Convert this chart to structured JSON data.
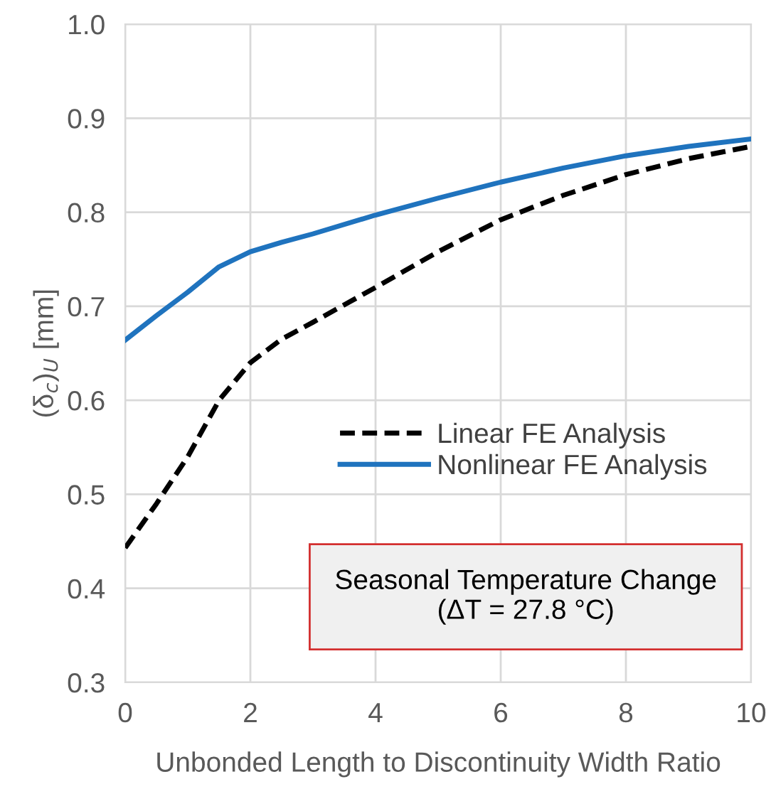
{
  "chart_data": {
    "type": "line",
    "xlabel": "Unbonded Length to Discontinuity Width Ratio",
    "ylabel": "(δ$_{c}$)$_{U}$ [mm]",
    "x": [
      0,
      0.5,
      1,
      1.5,
      2,
      2.5,
      3,
      4,
      5,
      6,
      7,
      8,
      9,
      10
    ],
    "series": [
      {
        "name": "Linear FE Analysis",
        "color": "#000000",
        "line_style": "dashed",
        "values": [
          0.443,
          0.49,
          0.54,
          0.6,
          0.64,
          0.665,
          0.683,
          0.72,
          0.758,
          0.792,
          0.818,
          0.84,
          0.857,
          0.87
        ]
      },
      {
        "name": "Nonlinear FE Analysis",
        "color": "#1f73be",
        "line_style": "solid",
        "values": [
          0.664,
          0.69,
          0.715,
          0.742,
          0.758,
          0.768,
          0.777,
          0.797,
          0.815,
          0.832,
          0.847,
          0.86,
          0.87,
          0.878
        ]
      }
    ],
    "xlim": [
      0,
      10
    ],
    "xticks": [
      0,
      2,
      4,
      6,
      8,
      10
    ],
    "ylim": [
      0.3,
      1.0
    ],
    "yticks": [
      0.3,
      0.4,
      0.5,
      0.6,
      0.7,
      0.8,
      0.9,
      {
        "value": 1.0,
        "label": "1.0"
      }
    ],
    "grid": true,
    "legend": "bottom right",
    "marker": "none",
    "annotations": [
      "Seasonal Temperature Change\n(ΔT = 27.8 °C)"
    ]
  }
}
